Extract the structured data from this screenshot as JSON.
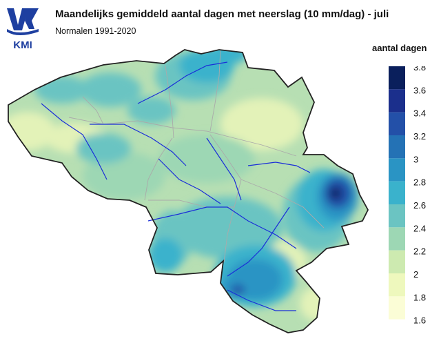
{
  "header": {
    "title": "Maandelijks gemiddeld aantal dagen met neerslag (10 mm/dag) - juli",
    "subtitle": "Normalen 1991-2020",
    "logo_text": "KMI"
  },
  "legend": {
    "title": "aantal dagen",
    "classes": [
      {
        "value": "3.8",
        "color": "#0a1f5c"
      },
      {
        "value": "3.6",
        "color": "#1b2f8c"
      },
      {
        "value": "3.4",
        "color": "#2350a8"
      },
      {
        "value": "3.2",
        "color": "#2472b5"
      },
      {
        "value": "3",
        "color": "#2a94c4"
      },
      {
        "value": "2.8",
        "color": "#3ab2cc"
      },
      {
        "value": "2.6",
        "color": "#6bc4c2"
      },
      {
        "value": "2.4",
        "color": "#9dd7b4"
      },
      {
        "value": "2.2",
        "color": "#cdeab0"
      },
      {
        "value": "2",
        "color": "#eef8bd"
      },
      {
        "value": "1.8",
        "color": "#fbfdd6"
      },
      {
        "value": "1.6",
        "color": "#ffffff"
      }
    ]
  },
  "map": {
    "region": "Belgium",
    "colors": {
      "base": "#b7dfb3",
      "coast": "#c2e4b0",
      "low": "#e3f2b8",
      "mid": "#9dd7b4",
      "high": "#6bc4c2",
      "higher": "#3ab2cc",
      "peak1": "#2a94c4",
      "peak2": "#2350a8",
      "peak3": "#0a1f5c",
      "rivers": "#1a2ed8",
      "borders": "#aaaaaa",
      "outline": "#222222"
    }
  }
}
